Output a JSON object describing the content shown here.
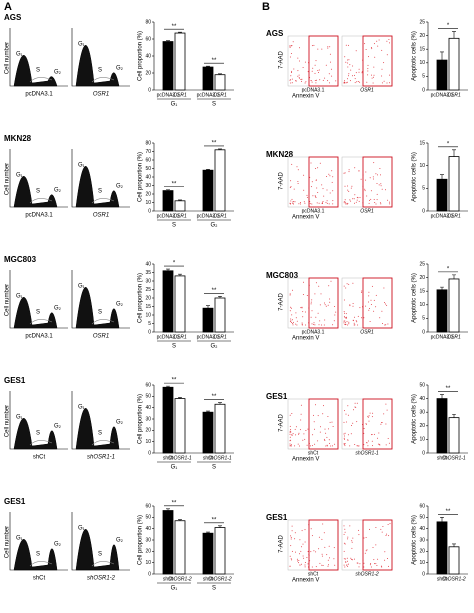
{
  "panels": [
    "A",
    "B"
  ],
  "rows": [
    {
      "cell_line": "AGS",
      "histograms": {
        "y_label": "Cell number",
        "samples": [
          "pcDNA3.1",
          "OSR1"
        ],
        "peaks": [
          "G₁",
          "S",
          "G₂"
        ]
      },
      "cycle": {
        "y_label": "Cell proportion (%)",
        "ylim": [
          0,
          80
        ],
        "yticks": [
          0,
          20,
          40,
          60,
          80
        ],
        "categories": [
          "pcDNA3.1",
          "OSR1"
        ],
        "groups": [
          {
            "name": "G₁",
            "values": [
              57,
              67
            ],
            "errors": [
              1,
              1
            ],
            "significance": "**"
          },
          {
            "name": "S",
            "values": [
              27,
              18
            ],
            "errors": [
              1,
              1
            ],
            "significance": "**"
          }
        ]
      },
      "flow": {
        "y_label": "7-AAD",
        "x_label": "Annexin V",
        "samples": [
          "pcDNA3.1",
          "OSR1"
        ]
      },
      "apoptosis": {
        "y_label": "Apoptotic cells (%)",
        "ylim": [
          0,
          25
        ],
        "yticks": [
          0,
          5,
          10,
          15,
          20,
          25
        ],
        "categories": [
          "pcDNA3.1",
          "OSR1"
        ],
        "values": [
          11,
          19
        ],
        "errors": [
          3,
          2.5
        ],
        "significance": "*"
      }
    },
    {
      "cell_line": "MKN28",
      "histograms": {
        "y_label": "Cell number",
        "samples": [
          "pcDNA3.1",
          "OSR1"
        ],
        "peaks": [
          "G₁",
          "S",
          "G₂"
        ]
      },
      "cycle": {
        "y_label": "Cell proportion (%)",
        "ylim": [
          0,
          80
        ],
        "yticks": [
          0,
          10,
          20,
          30,
          40,
          50,
          60,
          70,
          80
        ],
        "categories": [
          "pcDNA3.1",
          "OSR1"
        ],
        "groups": [
          {
            "name": "S",
            "values": [
              24,
              12
            ],
            "errors": [
              1,
              1
            ],
            "significance": "**"
          },
          {
            "name": "G₂",
            "values": [
              48,
              72
            ],
            "errors": [
              1,
              1
            ],
            "significance": "**"
          }
        ]
      },
      "flow": {
        "y_label": "7-AAD",
        "x_label": "Annexin V",
        "samples": [
          "pcDNA3.1",
          "OSR1"
        ]
      },
      "apoptosis": {
        "y_label": "Apoptotic cells (%)",
        "ylim": [
          0,
          15
        ],
        "yticks": [
          0,
          5,
          10,
          15
        ],
        "categories": [
          "pcDNA3.1",
          "OSR1"
        ],
        "values": [
          7,
          12
        ],
        "errors": [
          1,
          1.5
        ],
        "significance": "*"
      }
    },
    {
      "cell_line": "MGC803",
      "histograms": {
        "y_label": "Cell number",
        "samples": [
          "pcDNA3.1",
          "OSR1"
        ],
        "peaks": [
          "G₁",
          "S",
          "G₂"
        ]
      },
      "cycle": {
        "y_label": "Cell proportion (%)",
        "ylim": [
          0,
          40
        ],
        "yticks": [
          0,
          5,
          10,
          15,
          20,
          25,
          30,
          35,
          40
        ],
        "categories": [
          "pcDNA3.1",
          "OSR1"
        ],
        "groups": [
          {
            "name": "S",
            "values": [
              36,
              33
            ],
            "errors": [
              1,
              1
            ],
            "significance": "*"
          },
          {
            "name": "G₂",
            "values": [
              14,
              20
            ],
            "errors": [
              1.5,
              1
            ],
            "significance": "**"
          }
        ]
      },
      "flow": {
        "y_label": "7-AAD",
        "x_label": "Annexin V",
        "samples": [
          "pcDNA3.1",
          "OSR1"
        ]
      },
      "apoptosis": {
        "y_label": "Apoptotic cells (%)",
        "ylim": [
          0,
          25
        ],
        "yticks": [
          0,
          5,
          10,
          15,
          20,
          25
        ],
        "categories": [
          "pcDNA3.1",
          "OSR1"
        ],
        "values": [
          15.5,
          19.5
        ],
        "errors": [
          1,
          1.5
        ],
        "significance": "*"
      }
    },
    {
      "cell_line": "GES1",
      "histograms": {
        "y_label": "Cell number",
        "samples": [
          "shCt",
          "shOSR1-1"
        ],
        "peaks": [
          "G₁",
          "S",
          "G₂"
        ]
      },
      "cycle": {
        "y_label": "Cell proportion (%)",
        "ylim": [
          0,
          60
        ],
        "yticks": [
          0,
          10,
          20,
          30,
          40,
          50,
          60
        ],
        "categories": [
          "shCt",
          "shOSR1-1"
        ],
        "groups": [
          {
            "name": "G₁",
            "values": [
              58,
              48
            ],
            "errors": [
              1,
              1
            ],
            "significance": "**"
          },
          {
            "name": "S",
            "values": [
              36,
              43
            ],
            "errors": [
              1,
              1.5
            ],
            "significance": "**"
          }
        ]
      },
      "flow": {
        "y_label": "7-AAD",
        "x_label": "Annexin V",
        "samples": [
          "shCt",
          "shOSR1-1"
        ]
      },
      "apoptosis": {
        "y_label": "Apoptotic cells (%)",
        "ylim": [
          0,
          50
        ],
        "yticks": [
          0,
          10,
          20,
          30,
          40,
          50
        ],
        "categories": [
          "shCt",
          "shOSR1-1"
        ],
        "values": [
          40,
          26
        ],
        "errors": [
          3,
          2.5
        ],
        "significance": "**"
      }
    },
    {
      "cell_line": "GES1",
      "histograms": {
        "y_label": "Cell number",
        "samples": [
          "shCt",
          "shOSR1-2"
        ],
        "peaks": [
          "G₁",
          "S",
          "G₂"
        ]
      },
      "cycle": {
        "y_label": "Cell proportion (%)",
        "ylim": [
          0,
          60
        ],
        "yticks": [
          0,
          10,
          20,
          30,
          40,
          50,
          60
        ],
        "categories": [
          "shCt",
          "shOSR1-2"
        ],
        "groups": [
          {
            "name": "G₁",
            "values": [
              56,
              47
            ],
            "errors": [
              1.5,
              1
            ],
            "significance": "**"
          },
          {
            "name": "S",
            "values": [
              36,
              41
            ],
            "errors": [
              1,
              1.5
            ],
            "significance": "**"
          }
        ]
      },
      "flow": {
        "y_label": "7-AAD",
        "x_label": "Annexin V",
        "samples": [
          "shCt",
          "shOSR1-2"
        ]
      },
      "apoptosis": {
        "y_label": "Apoptotic cells (%)",
        "ylim": [
          0,
          60
        ],
        "yticks": [
          0,
          10,
          20,
          30,
          40,
          50,
          60
        ],
        "categories": [
          "shCt",
          "shOSR1-2"
        ],
        "values": [
          46,
          24
        ],
        "errors": [
          4,
          2.5
        ],
        "significance": "**"
      }
    }
  ]
}
